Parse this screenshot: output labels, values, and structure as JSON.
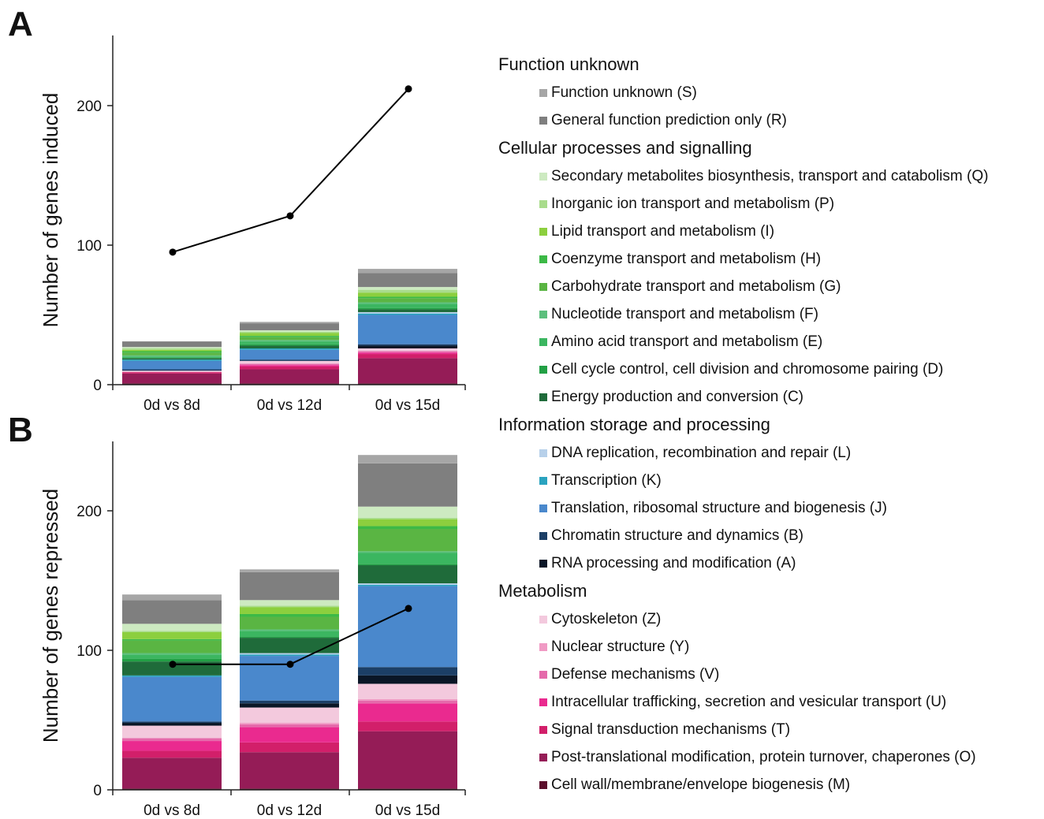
{
  "panels": [
    {
      "letter": "A"
    },
    {
      "letter": "B"
    }
  ],
  "chart_data": [
    {
      "type": "bar",
      "stacked": true,
      "ylabel": "Number of genes induced",
      "ylim": [
        0,
        250
      ],
      "yticks": [
        0,
        100,
        200
      ],
      "categories": [
        "0d vs 8d",
        "0d vs 12d",
        "0d vs 15d"
      ],
      "series": [
        {
          "name": "Cell wall/membrane/envelope biogenesis (M)",
          "values": [
            1,
            1,
            1
          ]
        },
        {
          "name": "Post-translational modification, protein turnover, chaperones (O)",
          "values": [
            7,
            10,
            18
          ]
        },
        {
          "name": "Signal transduction mechanisms (T)",
          "values": [
            1,
            2,
            3
          ]
        },
        {
          "name": "Intracellular trafficking, secretion and vesicular transport (U)",
          "values": [
            0,
            1,
            1
          ]
        },
        {
          "name": "Defense mechanisms (V)",
          "values": [
            0,
            1,
            1
          ]
        },
        {
          "name": "Nuclear structure (Y)",
          "values": [
            0,
            0,
            0
          ]
        },
        {
          "name": "Cytoskeleton (Z)",
          "values": [
            1,
            2,
            2
          ]
        },
        {
          "name": "RNA processing and modification (A)",
          "values": [
            0,
            0,
            2
          ]
        },
        {
          "name": "Chromatin structure and dynamics (B)",
          "values": [
            1,
            1,
            1
          ]
        },
        {
          "name": "Translation, ribosomal structure and biogenesis (J)",
          "values": [
            6,
            7,
            21
          ]
        },
        {
          "name": "Transcription (K)",
          "values": [
            1,
            1,
            1
          ]
        },
        {
          "name": "DNA replication, recombination and repair (L)",
          "values": [
            0,
            0,
            1
          ]
        },
        {
          "name": "Energy production and conversion (C)",
          "values": [
            1,
            2,
            2
          ]
        },
        {
          "name": "Cell cycle control, cell division and chromosome pairing (D)",
          "values": [
            0,
            1,
            1
          ]
        },
        {
          "name": "Amino acid transport and metabolism (E)",
          "values": [
            1,
            2,
            3
          ]
        },
        {
          "name": "Nucleotide transport and metabolism (F)",
          "values": [
            1,
            1,
            1
          ]
        },
        {
          "name": "Carbohydrate transport and metabolism (G)",
          "values": [
            2,
            2,
            3
          ]
        },
        {
          "name": "Coenzyme transport and metabolism (H)",
          "values": [
            1,
            1,
            1
          ]
        },
        {
          "name": "Lipid transport and metabolism (I)",
          "values": [
            1,
            2,
            3
          ]
        },
        {
          "name": "Inorganic ion transport and metabolism (P)",
          "values": [
            1,
            1,
            2
          ]
        },
        {
          "name": "Secondary metabolites biosynthesis, transport and catabolism (Q)",
          "values": [
            1,
            1,
            2
          ]
        },
        {
          "name": "General function prediction only (R)",
          "values": [
            4,
            5,
            10
          ]
        },
        {
          "name": "Function unknown (S)",
          "values": [
            0,
            1,
            3
          ]
        }
      ],
      "line": {
        "values": [
          95,
          121,
          212
        ]
      }
    },
    {
      "type": "bar",
      "stacked": true,
      "ylabel": "Number of genes repressed",
      "ylim": [
        0,
        250
      ],
      "yticks": [
        0,
        100,
        200
      ],
      "categories": [
        "0d vs 8d",
        "0d vs 12d",
        "0d vs 15d"
      ],
      "series": [
        {
          "name": "Cell wall/membrane/envelope biogenesis (M)",
          "values": [
            1,
            1,
            1
          ]
        },
        {
          "name": "Post-translational modification, protein turnover, chaperones (O)",
          "values": [
            22,
            26,
            41
          ]
        },
        {
          "name": "Signal transduction mechanisms (T)",
          "values": [
            5,
            7,
            7
          ]
        },
        {
          "name": "Intracellular trafficking, secretion and vesicular transport (U)",
          "values": [
            7,
            11,
            13
          ]
        },
        {
          "name": "Defense mechanisms (V)",
          "values": [
            2,
            2,
            2
          ]
        },
        {
          "name": "Nuclear structure (Y)",
          "values": [
            0,
            1,
            1
          ]
        },
        {
          "name": "Cytoskeleton (Z)",
          "values": [
            9,
            11,
            11
          ]
        },
        {
          "name": "RNA processing and modification (A)",
          "values": [
            2,
            3,
            6
          ]
        },
        {
          "name": "Chromatin structure and dynamics (B)",
          "values": [
            1,
            2,
            6
          ]
        },
        {
          "name": "Translation, ribosomal structure and biogenesis (J)",
          "values": [
            32,
            32,
            58
          ]
        },
        {
          "name": "Transcription (K)",
          "values": [
            1,
            1,
            1
          ]
        },
        {
          "name": "DNA replication, recombination and repair (L)",
          "values": [
            0,
            1,
            1
          ]
        },
        {
          "name": "Energy production and conversion (C)",
          "values": [
            10,
            11,
            13
          ]
        },
        {
          "name": "Cell cycle control, cell division and chromosome pairing (D)",
          "values": [
            2,
            1,
            1
          ]
        },
        {
          "name": "Amino acid transport and metabolism (E)",
          "values": [
            3,
            4,
            8
          ]
        },
        {
          "name": "Nucleotide transport and metabolism (F)",
          "values": [
            1,
            1,
            1
          ]
        },
        {
          "name": "Carbohydrate transport and metabolism (G)",
          "values": [
            9,
            9,
            16
          ]
        },
        {
          "name": "Coenzyme transport and metabolism (H)",
          "values": [
            1,
            2,
            2
          ]
        },
        {
          "name": "Lipid transport and metabolism (I)",
          "values": [
            5,
            5,
            5
          ]
        },
        {
          "name": "Inorganic ion transport and metabolism (P)",
          "values": [
            1,
            1,
            1
          ]
        },
        {
          "name": "Secondary metabolites biosynthesis, transport and catabolism (Q)",
          "values": [
            5,
            4,
            8
          ]
        },
        {
          "name": "General function prediction only (R)",
          "values": [
            17,
            20,
            31
          ]
        },
        {
          "name": "Function unknown (S)",
          "values": [
            4,
            2,
            6
          ]
        }
      ],
      "line": {
        "values": [
          90,
          90,
          130
        ]
      }
    }
  ],
  "legend": [
    {
      "title": "Function unknown",
      "items": [
        {
          "label": "Function unknown (S)",
          "color": "#a6a6a6"
        },
        {
          "label": "General function prediction only (R)",
          "color": "#7f7f7f"
        }
      ]
    },
    {
      "title": "Cellular processes and signalling",
      "items": [
        {
          "label": "Secondary metabolites biosynthesis, transport and catabolism (Q)",
          "color": "#cdeac1"
        },
        {
          "label": "Inorganic ion transport and metabolism (P)",
          "color": "#a9dc8c"
        },
        {
          "label": "Lipid transport and metabolism (I)",
          "color": "#8ccf3e"
        },
        {
          "label": "Coenzyme transport and metabolism (H)",
          "color": "#3cb946"
        },
        {
          "label": "Carbohydrate transport and metabolism (G)",
          "color": "#5ab543"
        },
        {
          "label": "Nucleotide transport and metabolism (F)",
          "color": "#5cbf7d"
        },
        {
          "label": "Amino acid transport and metabolism (E)",
          "color": "#3bb660"
        },
        {
          "label": "Cell cycle control, cell division and chromosome pairing (D)",
          "color": "#22a045"
        },
        {
          "label": "Energy production and conversion (C)",
          "color": "#1f6b3a"
        }
      ]
    },
    {
      "title": "Information storage and processing",
      "items": [
        {
          "label": "DNA replication, recombination and repair (L)",
          "color": "#b7d0ea"
        },
        {
          "label": "Transcription (K)",
          "color": "#2aa3bf"
        },
        {
          "label": "Translation, ribosomal structure and biogenesis (J)",
          "color": "#4a88cc"
        },
        {
          "label": "Chromatin structure and dynamics (B)",
          "color": "#1c3f66"
        },
        {
          "label": "RNA processing and modification (A)",
          "color": "#0a1626"
        }
      ]
    },
    {
      "title": "Metabolism",
      "items": [
        {
          "label": "Cytoskeleton (Z)",
          "color": "#f3c9dd"
        },
        {
          "label": "Nuclear structure (Y)",
          "color": "#f09ac4"
        },
        {
          "label": "Defense mechanisms (V)",
          "color": "#e56aab"
        },
        {
          "label": "Intracellular trafficking, secretion and vesicular transport (U)",
          "color": "#ea2a8f"
        },
        {
          "label": "Signal transduction mechanisms (T)",
          "color": "#d21f6a"
        },
        {
          "label": "Post-translational modification, protein turnover, chaperones (O)",
          "color": "#951c57"
        },
        {
          "label": "Cell wall/membrane/envelope biogenesis (M)",
          "color": "#5c0f2c"
        }
      ]
    }
  ]
}
